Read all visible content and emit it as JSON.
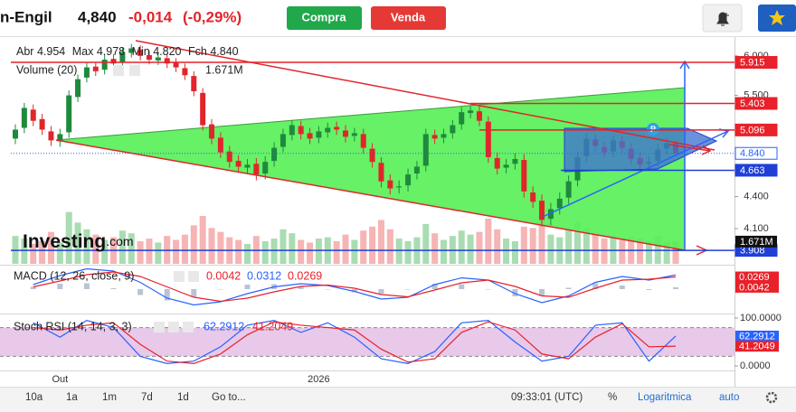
{
  "header": {
    "ticker": "n-Engil",
    "price": "4,840",
    "change": "-0,014",
    "change_pct": "(-0,29%)",
    "buy": "Compra",
    "sell": "Venda"
  },
  "legend": {
    "open_label": "Abr",
    "open": "4.954",
    "max_label": "Max",
    "max": "4.978",
    "min_label": "Min",
    "min": "4.820",
    "close_label": "Fch",
    "close": "4.840",
    "volume_name": "Volume (20)",
    "volume_value": "1.671M",
    "macd_name": "MACD (12, 26, close, 9)",
    "macd_hist": "0.0042",
    "macd_line": "0.0312",
    "macd_signal": "0.0269",
    "stoch_name": "Stoch RSI (14, 14, 3, 3)",
    "stoch_k": "62.2912",
    "stoch_d": "41.2049"
  },
  "watermark": {
    "brand": "Investing",
    "suffix": ".com"
  },
  "toolbar": {
    "ranges": [
      "10a",
      "1a",
      "1m",
      "7d",
      "1d"
    ],
    "goto": "Go to...",
    "clock": "09:33:01 (UTC)",
    "percent": "%",
    "log": "Logaritmica",
    "auto": "auto"
  },
  "chart_data": [
    {
      "type": "candlestick",
      "categories": [
        null,
        null,
        null,
        null,
        null,
        "Out",
        null,
        null,
        null,
        null,
        null,
        null,
        null,
        null,
        null,
        null,
        null,
        null,
        null,
        null,
        null,
        null,
        null,
        null,
        null,
        null,
        null,
        null,
        null,
        null,
        null,
        null,
        null,
        null,
        "2026",
        null,
        null,
        null,
        null,
        null,
        null,
        null,
        null,
        null,
        null,
        null,
        null,
        null,
        null,
        null,
        null,
        null,
        null,
        null,
        null,
        null,
        null,
        null,
        null,
        null,
        null,
        null,
        null,
        null,
        null,
        null,
        null,
        null,
        null,
        null,
        null,
        null,
        null,
        null,
        null
      ],
      "open": [
        5.0,
        5.12,
        5.33,
        5.22,
        5.08,
        4.97,
        5.07,
        5.48,
        5.72,
        5.86,
        5.82,
        5.96,
        5.92,
        6.04,
        6.08,
        6.01,
        5.94,
        5.97,
        5.91,
        5.84,
        5.74,
        5.53,
        5.16,
        5.01,
        4.86,
        4.76,
        4.69,
        4.73,
        4.63,
        4.76,
        4.91,
        5.04,
        5.14,
        5.06,
        5.01,
        5.07,
        5.13,
        5.09,
        5.03,
        5.05,
        4.89,
        4.74,
        4.56,
        4.49,
        4.51,
        4.63,
        4.71,
        5.04,
        5.01,
        5.06,
        5.16,
        5.29,
        5.31,
        5.19,
        4.79,
        4.69,
        4.73,
        4.77,
        4.44,
        4.36,
        4.19,
        4.29,
        4.39,
        4.56,
        4.81,
        4.99,
        4.91,
        4.86,
        4.97,
        4.89,
        4.79,
        4.73,
        4.76,
        4.89,
        4.954
      ],
      "high": [
        5.16,
        5.41,
        5.39,
        5.28,
        5.14,
        5.11,
        5.56,
        5.76,
        5.91,
        5.92,
        6.01,
        6.02,
        6.11,
        6.16,
        6.14,
        6.07,
        6.04,
        6.03,
        5.97,
        5.9,
        5.8,
        5.59,
        5.22,
        5.07,
        4.92,
        4.82,
        4.78,
        4.79,
        4.81,
        4.96,
        5.11,
        5.21,
        5.2,
        5.12,
        5.14,
        5.18,
        5.19,
        5.15,
        5.12,
        5.11,
        4.95,
        4.8,
        4.62,
        4.56,
        4.68,
        4.76,
        5.11,
        5.1,
        5.11,
        5.21,
        5.36,
        5.38,
        5.37,
        5.25,
        4.85,
        4.78,
        4.84,
        4.83,
        4.5,
        4.42,
        4.34,
        4.44,
        4.61,
        4.86,
        5.06,
        5.05,
        4.97,
        5.04,
        5.03,
        4.95,
        4.85,
        4.81,
        4.94,
        5.01,
        4.978
      ],
      "low": [
        4.94,
        5.06,
        5.14,
        5.04,
        4.92,
        4.91,
        5.01,
        5.42,
        5.66,
        5.74,
        5.76,
        5.84,
        5.86,
        5.98,
        5.94,
        5.89,
        5.88,
        5.84,
        5.79,
        5.69,
        5.49,
        5.09,
        4.94,
        4.79,
        4.69,
        4.64,
        4.63,
        4.56,
        4.57,
        4.7,
        4.85,
        4.98,
        4.99,
        4.94,
        4.95,
        5.01,
        5.04,
        4.96,
        4.97,
        4.84,
        4.69,
        4.49,
        4.42,
        4.43,
        4.45,
        4.57,
        4.65,
        4.94,
        4.95,
        5.0,
        5.1,
        5.23,
        5.14,
        4.74,
        4.62,
        4.63,
        4.67,
        4.39,
        4.29,
        4.12,
        4.13,
        4.23,
        4.33,
        4.5,
        4.75,
        4.86,
        4.79,
        4.8,
        4.84,
        4.72,
        4.66,
        4.67,
        4.7,
        4.83,
        4.82
      ],
      "close": [
        5.1,
        5.35,
        5.2,
        5.1,
        4.98,
        5.05,
        5.5,
        5.7,
        5.85,
        5.8,
        5.95,
        5.9,
        6.05,
        6.1,
        6.0,
        5.95,
        5.98,
        5.9,
        5.85,
        5.75,
        5.55,
        5.15,
        5.0,
        4.85,
        4.75,
        4.7,
        4.72,
        4.62,
        4.75,
        4.9,
        5.05,
        5.15,
        5.05,
        5.0,
        5.08,
        5.12,
        5.1,
        5.02,
        5.06,
        4.9,
        4.75,
        4.55,
        4.48,
        4.5,
        4.62,
        4.7,
        5.05,
        5.0,
        5.05,
        5.15,
        5.3,
        5.32,
        5.2,
        4.8,
        4.68,
        4.72,
        4.78,
        4.45,
        4.35,
        4.18,
        4.28,
        4.38,
        4.55,
        4.8,
        5.0,
        4.92,
        4.85,
        4.98,
        4.9,
        4.78,
        4.72,
        4.75,
        4.88,
        4.95,
        4.84
      ],
      "volume": [
        2100000,
        1900000,
        1500000,
        1700000,
        2400000,
        1600000,
        3900000,
        3100000,
        2600000,
        2200000,
        1800000,
        2000000,
        2500000,
        2300000,
        1700000,
        1900000,
        1600000,
        2100000,
        1800000,
        2200000,
        2900000,
        3600000,
        2700000,
        2400000,
        2000000,
        1800000,
        1500000,
        2100000,
        1700000,
        1900000,
        2600000,
        2300000,
        1800000,
        1600000,
        1900000,
        2000000,
        1700000,
        2200000,
        1800000,
        2500000,
        2800000,
        3300000,
        2600000,
        1900000,
        1700000,
        2000000,
        3000000,
        2300000,
        1800000,
        2100000,
        2500000,
        2200000,
        2400000,
        3400000,
        2600000,
        1900000,
        1700000,
        2800000,
        2700000,
        3800000,
        2200000,
        2000000,
        2600000,
        3100000,
        2700000,
        2200000,
        1900000,
        2100000,
        1800000,
        2000000,
        1900000,
        1700000,
        2100000,
        1600000,
        1671000
      ],
      "up_color": "#1e8a3c",
      "down_color": "#e0262b",
      "volume_up_color": "#a9dcb2",
      "volume_down_color": "#f6b4b4",
      "log_scale": true,
      "ylim": [
        3.794,
        6.267
      ],
      "yticks": [
        {
          "value": 4.1,
          "label": "4.100"
        },
        {
          "value": 4.4,
          "label": "4.400"
        },
        {
          "value": 5.5,
          "label": "5.500"
        },
        {
          "value": 6.0,
          "label": "6.000"
        }
      ],
      "volume_ylim": [
        0,
        6800000
      ],
      "volume_level": {
        "value": 1671000,
        "label": "1.671M"
      },
      "levels": [
        {
          "value": 5.915,
          "label": "5.915",
          "color": "#e8212a",
          "style": "solid"
        },
        {
          "value": 5.403,
          "label": "5.403",
          "color": "#e8212a",
          "style": "solid"
        },
        {
          "value": 5.096,
          "label": "5.096",
          "color": "#e8212a",
          "style": "solid"
        },
        {
          "value": 4.84,
          "label": "4.840",
          "color": "#2962ff",
          "style": "dotted"
        },
        {
          "value": 4.663,
          "label": "4.663",
          "color": "#1f3fd6",
          "style": "solid"
        },
        {
          "value": 3.908,
          "label": "3.908",
          "color": "#1f3fd6",
          "style": "solid"
        }
      ],
      "marker_label": "P"
    },
    {
      "type": "macd",
      "x": [
        2,
        5,
        8,
        11,
        14,
        17,
        20,
        23,
        26,
        29,
        32,
        35,
        38,
        41,
        44,
        47,
        50,
        53,
        56,
        59,
        62,
        65,
        68,
        71,
        74
      ],
      "xlim": [
        0,
        74
      ],
      "ylim": [
        -0.05,
        0.05
      ],
      "histogram": [
        0.005,
        0.012,
        0.013,
        0.002,
        -0.013,
        -0.025,
        -0.017,
        -0.001,
        0.01,
        0.011,
        0.006,
        -0.001,
        -0.007,
        -0.01,
        -0.001,
        0.012,
        0.011,
        0.0,
        -0.016,
        -0.015,
        0.003,
        0.013,
        0.008,
        -0.002,
        0.0042
      ],
      "histogram_color": "#b9c3d6",
      "series": [
        {
          "color": "#2962ff",
          "values": [
            0.01,
            0.03,
            0.045,
            0.04,
            0.015,
            -0.02,
            -0.035,
            -0.028,
            -0.01,
            0.005,
            0.012,
            0.008,
            -0.005,
            -0.022,
            -0.018,
            0.01,
            0.025,
            0.02,
            -0.01,
            -0.03,
            -0.015,
            0.015,
            0.028,
            0.02,
            0.0312
          ]
        },
        {
          "color": "#e8212a",
          "values": [
            0.005,
            0.018,
            0.032,
            0.038,
            0.028,
            0.005,
            -0.018,
            -0.027,
            -0.02,
            -0.006,
            0.006,
            0.009,
            0.002,
            -0.012,
            -0.017,
            -0.002,
            0.014,
            0.02,
            0.006,
            -0.015,
            -0.018,
            0.002,
            0.02,
            0.022,
            0.0269
          ]
        }
      ],
      "axis_labels": [
        {
          "value": 0.0269,
          "label": "0.0269",
          "color": "#e8212a"
        },
        {
          "value": 0.0042,
          "label": "0.0042",
          "color": "#e8212a"
        }
      ]
    },
    {
      "type": "line",
      "x": [
        2,
        5,
        8,
        11,
        14,
        17,
        20,
        23,
        26,
        29,
        32,
        35,
        38,
        41,
        44,
        47,
        50,
        53,
        56,
        59,
        62,
        65,
        68,
        71,
        74
      ],
      "xlim": [
        0,
        74
      ],
      "ylim": [
        -9.4,
        107.5
      ],
      "yticks": [
        {
          "value": 0,
          "label": "0.0000"
        },
        {
          "value": 100,
          "label": "100.0000"
        }
      ],
      "band": [
        20,
        80
      ],
      "band_color": "#e8c9ea",
      "series": [
        {
          "color": "#2962ff",
          "values": [
            90,
            60,
            95,
            80,
            20,
            5,
            10,
            40,
            85,
            95,
            70,
            90,
            60,
            15,
            5,
            30,
            90,
            95,
            50,
            10,
            20,
            85,
            90,
            10,
            62.2912
          ]
        },
        {
          "color": "#e8212a",
          "values": [
            80,
            75,
            85,
            90,
            45,
            10,
            5,
            25,
            65,
            92,
            85,
            80,
            75,
            35,
            8,
            15,
            70,
            92,
            75,
            25,
            15,
            60,
            88,
            40,
            41.2049
          ]
        }
      ],
      "axis_labels": [
        {
          "value": 62.2912,
          "label": "62.2912",
          "color": "#2962ff"
        },
        {
          "value": 41.2049,
          "label": "41.2049",
          "color": "#e8212a"
        }
      ]
    }
  ]
}
